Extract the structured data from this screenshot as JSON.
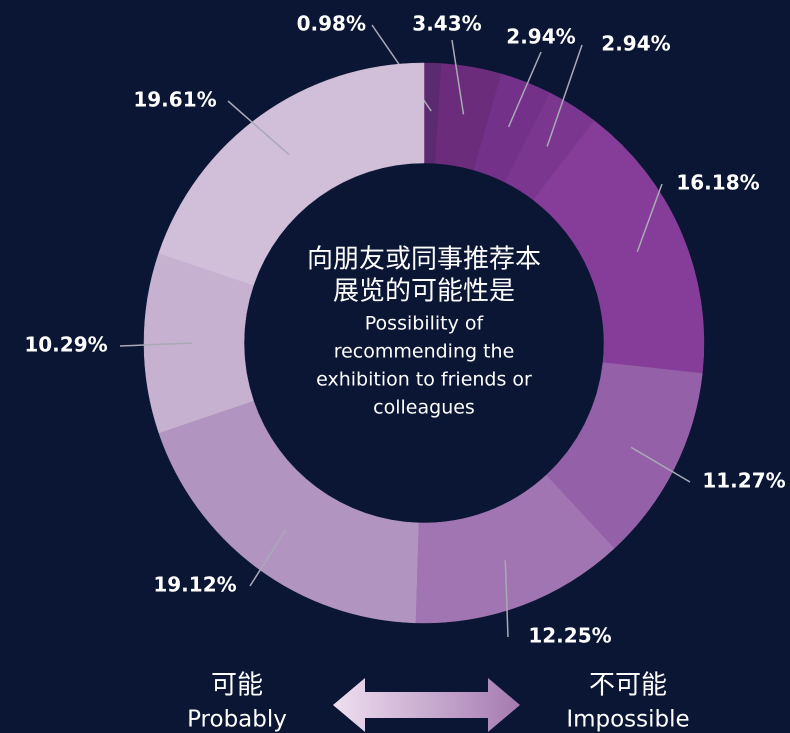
{
  "chart_data": {
    "type": "donut",
    "title_lines": [
      "向朋友或同事推荐本",
      "展览的可能性是"
    ],
    "subtitle_lines": [
      "Possibility of",
      "recommending the",
      "exhibition to friends or",
      "colleagues"
    ],
    "values": [
      0.98,
      3.43,
      2.94,
      2.94,
      16.18,
      11.27,
      12.25,
      19.12,
      10.29,
      19.61
    ],
    "value_labels": [
      "0.98%",
      "3.43%",
      "2.94%",
      "2.94%",
      "16.18%",
      "11.27%",
      "12.25%",
      "19.12%",
      "10.29%",
      "19.61%"
    ],
    "colors": [
      "#5c2a70",
      "#6b2c7c",
      "#74318a",
      "#7b3690",
      "#853d99",
      "#9461a9",
      "#a175b1",
      "#b195c0",
      "#c6b1d1",
      "#d1bed8"
    ],
    "scale": {
      "left": [
        "可能",
        "Probably"
      ],
      "right": [
        "不可能",
        "Impossible"
      ]
    }
  }
}
